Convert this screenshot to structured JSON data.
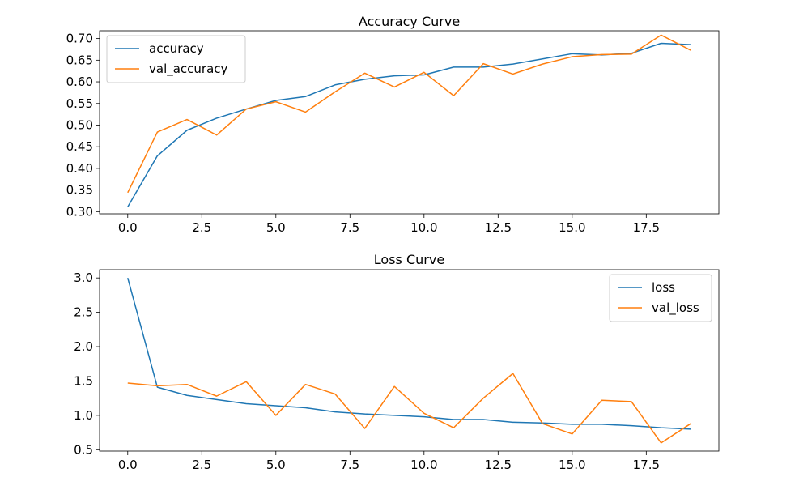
{
  "chart_data": [
    {
      "type": "line",
      "title": "Accuracy Curve",
      "xlabel": "",
      "ylabel": "",
      "x": [
        0,
        1,
        2,
        3,
        4,
        5,
        6,
        7,
        8,
        9,
        10,
        11,
        12,
        13,
        14,
        15,
        16,
        17,
        18,
        19
      ],
      "xlim": [
        -0.95,
        19.95
      ],
      "ylim": [
        0.295,
        0.718
      ],
      "xticks": [
        0.0,
        2.5,
        5.0,
        7.5,
        10.0,
        12.5,
        15.0,
        17.5
      ],
      "xtick_labels": [
        "0.0",
        "2.5",
        "5.0",
        "7.5",
        "10.0",
        "12.5",
        "15.0",
        "17.5"
      ],
      "yticks": [
        0.3,
        0.35,
        0.4,
        0.45,
        0.5,
        0.55,
        0.6,
        0.65,
        0.7
      ],
      "ytick_labels": [
        "0.30",
        "0.35",
        "0.40",
        "0.45",
        "0.50",
        "0.55",
        "0.60",
        "0.65",
        "0.70"
      ],
      "grid": false,
      "legend_position": "upper left",
      "series": [
        {
          "name": "accuracy",
          "color": "#1f77b4",
          "values": [
            0.311,
            0.429,
            0.488,
            0.516,
            0.537,
            0.557,
            0.566,
            0.593,
            0.606,
            0.614,
            0.616,
            0.634,
            0.634,
            0.641,
            0.653,
            0.665,
            0.662,
            0.666,
            0.689,
            0.686
          ]
        },
        {
          "name": "val_accuracy",
          "color": "#ff7f0e",
          "values": [
            0.344,
            0.484,
            0.513,
            0.477,
            0.537,
            0.554,
            0.53,
            0.577,
            0.62,
            0.588,
            0.622,
            0.568,
            0.642,
            0.618,
            0.641,
            0.658,
            0.663,
            0.664,
            0.708,
            0.673
          ]
        }
      ]
    },
    {
      "type": "line",
      "title": "Loss Curve",
      "xlabel": "",
      "ylabel": "",
      "x": [
        0,
        1,
        2,
        3,
        4,
        5,
        6,
        7,
        8,
        9,
        10,
        11,
        12,
        13,
        14,
        15,
        16,
        17,
        18,
        19
      ],
      "xlim": [
        -0.95,
        19.95
      ],
      "ylim": [
        0.48,
        3.12
      ],
      "xticks": [
        0.0,
        2.5,
        5.0,
        7.5,
        10.0,
        12.5,
        15.0,
        17.5
      ],
      "xtick_labels": [
        "0.0",
        "2.5",
        "5.0",
        "7.5",
        "10.0",
        "12.5",
        "15.0",
        "17.5"
      ],
      "yticks": [
        0.5,
        1.0,
        1.5,
        2.0,
        2.5,
        3.0
      ],
      "ytick_labels": [
        "0.5",
        "1.0",
        "1.5",
        "2.0",
        "2.5",
        "3.0"
      ],
      "grid": false,
      "legend_position": "upper right",
      "series": [
        {
          "name": "loss",
          "color": "#1f77b4",
          "values": [
            3.0,
            1.41,
            1.29,
            1.23,
            1.17,
            1.14,
            1.11,
            1.05,
            1.02,
            1.0,
            0.98,
            0.94,
            0.94,
            0.9,
            0.89,
            0.87,
            0.87,
            0.85,
            0.82,
            0.8
          ]
        },
        {
          "name": "val_loss",
          "color": "#ff7f0e",
          "values": [
            1.47,
            1.43,
            1.45,
            1.28,
            1.49,
            1.0,
            1.45,
            1.31,
            0.81,
            1.42,
            1.03,
            0.82,
            1.25,
            1.61,
            0.88,
            0.73,
            1.22,
            1.2,
            0.6,
            0.88
          ]
        }
      ]
    }
  ]
}
